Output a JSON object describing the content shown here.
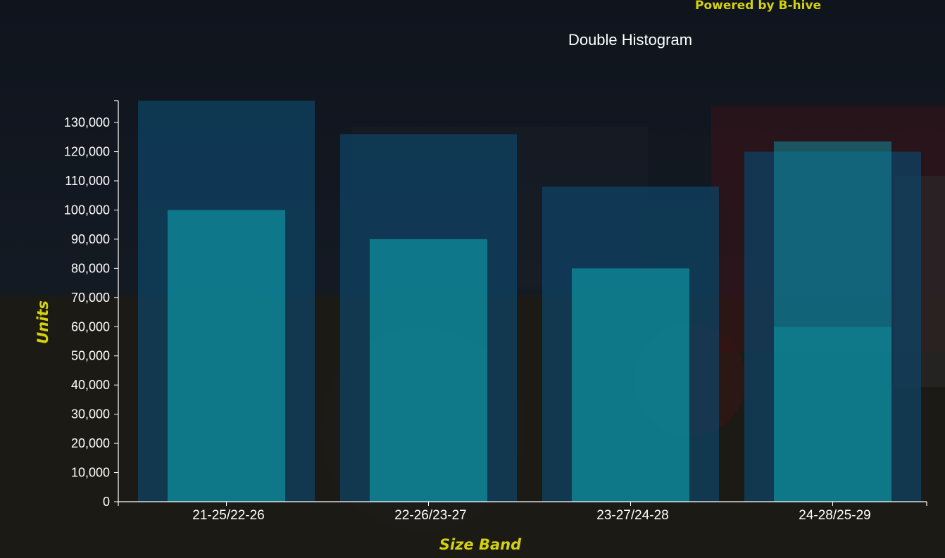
{
  "brand": {
    "text": "Powered by B-hive",
    "color": "#d4d10f"
  },
  "chart_data": {
    "type": "bar",
    "title": "Double Histogram",
    "xlabel": "Size Band",
    "ylabel": "Units",
    "categories": [
      "21-25/22-26",
      "22-26/23-27",
      "23-27/24-28",
      "24-28/25-29"
    ],
    "series": [
      {
        "values": [
          137500,
          126000,
          108000,
          120000
        ],
        "color": "#0e4466"
      },
      {
        "values": [
          100000,
          90000,
          80000,
          60000
        ],
        "color": "#0e8a9a"
      }
    ],
    "overlay_bar": {
      "category_index": 3,
      "value": 123500,
      "color": "#0e8a9a"
    },
    "ylim": [
      0,
      137500
    ],
    "yticks": [
      0,
      10000,
      20000,
      30000,
      40000,
      50000,
      60000,
      70000,
      80000,
      90000,
      100000,
      110000,
      120000,
      130000
    ],
    "grid": false,
    "background": "tractor photo, dark overlay"
  }
}
